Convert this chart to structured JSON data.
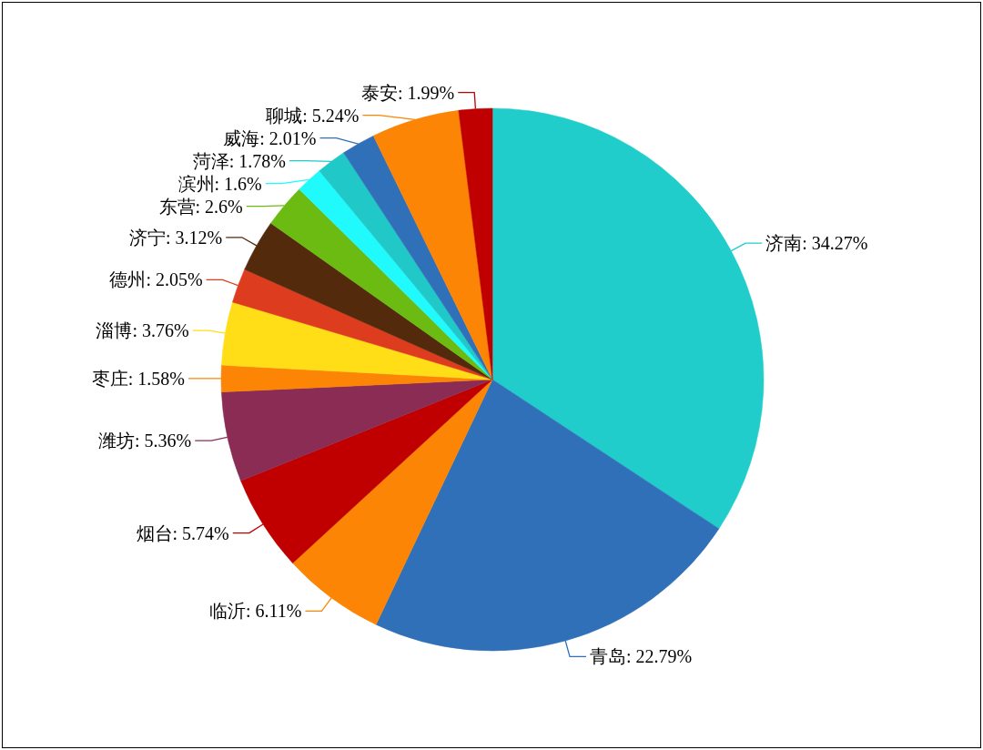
{
  "chart_data": {
    "type": "pie",
    "categories": [
      "济南",
      "青岛",
      "临沂",
      "烟台",
      "潍坊",
      "枣庄",
      "淄博",
      "德州",
      "济宁",
      "东营",
      "滨州",
      "菏泽",
      "威海",
      "聊城",
      "泰安"
    ],
    "values": [
      34.27,
      22.79,
      6.11,
      5.74,
      5.36,
      1.58,
      3.76,
      2.05,
      3.12,
      2.6,
      1.6,
      1.78,
      2.01,
      5.24,
      1.99
    ],
    "value_labels": [
      "34.27%",
      "22.79%",
      "6.11%",
      "5.74%",
      "5.36%",
      "1.58%",
      "3.76%",
      "2.05%",
      "3.12%",
      "2.6%",
      "1.6%",
      "1.78%",
      "2.01%",
      "5.24%",
      "1.99%"
    ],
    "colors": [
      "#21cdca",
      "#3070b8",
      "#fd8506",
      "#c00000",
      "#8b2c55",
      "#fd8506",
      "#ffde17",
      "#dd3c1e",
      "#532a0c",
      "#6bbb12",
      "#20fafd",
      "#21c8c8",
      "#3070b8",
      "#fd8506",
      "#c00000"
    ]
  }
}
